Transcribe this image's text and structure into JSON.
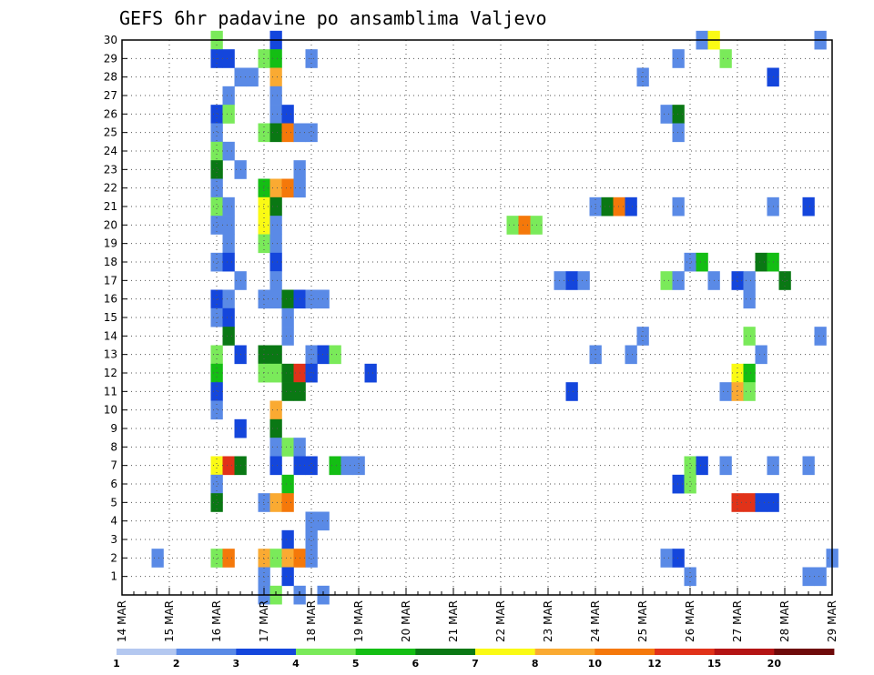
{
  "chart_data": {
    "type": "heatmap",
    "title": "GEFS 6hr padavine po ansamblima Valjevo",
    "xlabel": "",
    "ylabel": "",
    "x_tick_labels": [
      "14 MAR",
      "15 MAR",
      "16 MAR",
      "17 MAR",
      "18 MAR",
      "19 MAR",
      "20 MAR",
      "21 MAR",
      "22 MAR",
      "23 MAR",
      "24 MAR",
      "25 MAR",
      "26 MAR",
      "27 MAR",
      "28 MAR",
      "29 MAR"
    ],
    "x_range": [
      "14 MAR",
      "29 MAR"
    ],
    "time_step_hours": 6,
    "y_tick_labels": [
      "1",
      "2",
      "3",
      "4",
      "5",
      "6",
      "7",
      "8",
      "9",
      "10",
      "11",
      "12",
      "13",
      "14",
      "15",
      "16",
      "17",
      "18",
      "19",
      "20",
      "21",
      "22",
      "23",
      "24",
      "25",
      "26",
      "27",
      "28",
      "29",
      "30"
    ],
    "y_range": [
      0,
      30
    ],
    "grid": true,
    "legend": {
      "placement": "bottom",
      "bounds": [
        1,
        2,
        3,
        4,
        5,
        6,
        7,
        8,
        10,
        12,
        15,
        20
      ],
      "bound_labels": [
        "1",
        "2",
        "3",
        "4",
        "5",
        "6",
        "7",
        "8",
        "10",
        "12",
        "15",
        "20"
      ],
      "colors": [
        "#b4c8f0",
        "#5a8ae6",
        "#1446dc",
        "#7aea5a",
        "#14be14",
        "#0a7814",
        "#fafa14",
        "#faaa32",
        "#f5780a",
        "#e13219",
        "#b41414",
        "#6e0a0a"
      ]
    },
    "cells": [
      [
        "16 MAR 00Z",
        30,
        3
      ],
      [
        "17 MAR 06Z",
        30,
        2
      ],
      [
        "26 MAR 06Z",
        30,
        1
      ],
      [
        "26 MAR 12Z",
        30,
        6
      ],
      [
        "28 MAR 18Z",
        30,
        1
      ],
      [
        "16 MAR 00Z",
        29,
        2
      ],
      [
        "16 MAR 06Z",
        29,
        2
      ],
      [
        "17 MAR 00Z",
        29,
        3
      ],
      [
        "17 MAR 06Z",
        29,
        4
      ],
      [
        "18 MAR 00Z",
        29,
        1
      ],
      [
        "25 MAR 18Z",
        29,
        1
      ],
      [
        "26 MAR 18Z",
        29,
        3
      ],
      [
        "16 MAR 12Z",
        28,
        1
      ],
      [
        "16 MAR 18Z",
        28,
        1
      ],
      [
        "17 MAR 06Z",
        28,
        7
      ],
      [
        "25 MAR 00Z",
        28,
        1
      ],
      [
        "27 MAR 18Z",
        28,
        2
      ],
      [
        "16 MAR 06Z",
        27,
        1
      ],
      [
        "17 MAR 06Z",
        27,
        1
      ],
      [
        "16 MAR 00Z",
        26,
        2
      ],
      [
        "16 MAR 06Z",
        26,
        3
      ],
      [
        "17 MAR 06Z",
        26,
        1
      ],
      [
        "17 MAR 12Z",
        26,
        2
      ],
      [
        "25 MAR 12Z",
        26,
        1
      ],
      [
        "25 MAR 18Z",
        26,
        5
      ],
      [
        "16 MAR 00Z",
        25,
        1
      ],
      [
        "17 MAR 00Z",
        25,
        3
      ],
      [
        "17 MAR 06Z",
        25,
        5
      ],
      [
        "17 MAR 12Z",
        25,
        8
      ],
      [
        "17 MAR 18Z",
        25,
        1
      ],
      [
        "18 MAR 00Z",
        25,
        1
      ],
      [
        "25 MAR 18Z",
        25,
        1
      ],
      [
        "16 MAR 00Z",
        24,
        3
      ],
      [
        "16 MAR 06Z",
        24,
        1
      ],
      [
        "16 MAR 00Z",
        23,
        5
      ],
      [
        "16 MAR 12Z",
        23,
        1
      ],
      [
        "17 MAR 18Z",
        23,
        1
      ],
      [
        "16 MAR 00Z",
        22,
        1
      ],
      [
        "17 MAR 00Z",
        22,
        4
      ],
      [
        "17 MAR 06Z",
        22,
        7
      ],
      [
        "17 MAR 12Z",
        22,
        8
      ],
      [
        "17 MAR 18Z",
        22,
        1
      ],
      [
        "16 MAR 00Z",
        21,
        3
      ],
      [
        "16 MAR 06Z",
        21,
        1
      ],
      [
        "17 MAR 00Z",
        21,
        6
      ],
      [
        "17 MAR 06Z",
        21,
        5
      ],
      [
        "24 MAR 00Z",
        21,
        1
      ],
      [
        "24 MAR 06Z",
        21,
        5
      ],
      [
        "24 MAR 12Z",
        21,
        8
      ],
      [
        "24 MAR 18Z",
        21,
        2
      ],
      [
        "25 MAR 18Z",
        21,
        1
      ],
      [
        "27 MAR 18Z",
        21,
        1
      ],
      [
        "28 MAR 12Z",
        21,
        2
      ],
      [
        "16 MAR 00Z",
        20,
        1
      ],
      [
        "16 MAR 06Z",
        20,
        1
      ],
      [
        "17 MAR 00Z",
        20,
        6
      ],
      [
        "17 MAR 06Z",
        20,
        1
      ],
      [
        "22 MAR 06Z",
        20,
        3
      ],
      [
        "22 MAR 12Z",
        20,
        8
      ],
      [
        "22 MAR 18Z",
        20,
        3
      ],
      [
        "16 MAR 06Z",
        19,
        1
      ],
      [
        "17 MAR 00Z",
        19,
        3
      ],
      [
        "17 MAR 06Z",
        19,
        1
      ],
      [
        "16 MAR 00Z",
        18,
        1
      ],
      [
        "16 MAR 06Z",
        18,
        2
      ],
      [
        "17 MAR 06Z",
        18,
        2
      ],
      [
        "26 MAR 00Z",
        18,
        1
      ],
      [
        "26 MAR 06Z",
        18,
        4
      ],
      [
        "27 MAR 12Z",
        18,
        5
      ],
      [
        "27 MAR 18Z",
        18,
        4
      ],
      [
        "16 MAR 12Z",
        17,
        1
      ],
      [
        "17 MAR 06Z",
        17,
        1
      ],
      [
        "23 MAR 06Z",
        17,
        1
      ],
      [
        "23 MAR 12Z",
        17,
        2
      ],
      [
        "23 MAR 18Z",
        17,
        1
      ],
      [
        "25 MAR 12Z",
        17,
        3
      ],
      [
        "25 MAR 18Z",
        17,
        1
      ],
      [
        "26 MAR 12Z",
        17,
        1
      ],
      [
        "27 MAR 00Z",
        17,
        2
      ],
      [
        "27 MAR 06Z",
        17,
        1
      ],
      [
        "28 MAR 00Z",
        17,
        5
      ],
      [
        "16 MAR 00Z",
        16,
        2
      ],
      [
        "16 MAR 06Z",
        16,
        1
      ],
      [
        "17 MAR 00Z",
        16,
        1
      ],
      [
        "17 MAR 06Z",
        16,
        1
      ],
      [
        "17 MAR 12Z",
        16,
        5
      ],
      [
        "17 MAR 18Z",
        16,
        2
      ],
      [
        "18 MAR 00Z",
        16,
        1
      ],
      [
        "18 MAR 06Z",
        16,
        1
      ],
      [
        "27 MAR 06Z",
        16,
        1
      ],
      [
        "16 MAR 00Z",
        15,
        1
      ],
      [
        "16 MAR 06Z",
        15,
        2
      ],
      [
        "17 MAR 12Z",
        15,
        1
      ],
      [
        "16 MAR 06Z",
        14,
        5
      ],
      [
        "17 MAR 12Z",
        14,
        1
      ],
      [
        "25 MAR 00Z",
        14,
        1
      ],
      [
        "27 MAR 06Z",
        14,
        3
      ],
      [
        "28 MAR 18Z",
        14,
        1
      ],
      [
        "16 MAR 00Z",
        13,
        3
      ],
      [
        "16 MAR 12Z",
        13,
        2
      ],
      [
        "17 MAR 00Z",
        13,
        5
      ],
      [
        "17 MAR 06Z",
        13,
        5
      ],
      [
        "18 MAR 00Z",
        13,
        1
      ],
      [
        "18 MAR 06Z",
        13,
        2
      ],
      [
        "18 MAR 12Z",
        13,
        3
      ],
      [
        "24 MAR 00Z",
        13,
        1
      ],
      [
        "24 MAR 18Z",
        13,
        1
      ],
      [
        "27 MAR 12Z",
        13,
        1
      ],
      [
        "16 MAR 00Z",
        12,
        4
      ],
      [
        "17 MAR 00Z",
        12,
        3
      ],
      [
        "17 MAR 06Z",
        12,
        3
      ],
      [
        "17 MAR 12Z",
        12,
        5
      ],
      [
        "17 MAR 18Z",
        12,
        9
      ],
      [
        "18 MAR 00Z",
        12,
        2
      ],
      [
        "19 MAR 06Z",
        12,
        2
      ],
      [
        "27 MAR 00Z",
        12,
        6
      ],
      [
        "27 MAR 06Z",
        12,
        4
      ],
      [
        "16 MAR 00Z",
        11,
        2
      ],
      [
        "17 MAR 12Z",
        11,
        5
      ],
      [
        "17 MAR 18Z",
        11,
        5
      ],
      [
        "23 MAR 12Z",
        11,
        2
      ],
      [
        "26 MAR 18Z",
        11,
        1
      ],
      [
        "27 MAR 00Z",
        11,
        7
      ],
      [
        "27 MAR 06Z",
        11,
        3
      ],
      [
        "16 MAR 00Z",
        10,
        1
      ],
      [
        "17 MAR 06Z",
        10,
        7
      ],
      [
        "16 MAR 12Z",
        9,
        2
      ],
      [
        "17 MAR 06Z",
        9,
        5
      ],
      [
        "17 MAR 06Z",
        8,
        1
      ],
      [
        "17 MAR 12Z",
        8,
        3
      ],
      [
        "17 MAR 18Z",
        8,
        1
      ],
      [
        "16 MAR 00Z",
        7,
        6
      ],
      [
        "16 MAR 06Z",
        7,
        9
      ],
      [
        "16 MAR 12Z",
        7,
        5
      ],
      [
        "17 MAR 06Z",
        7,
        2
      ],
      [
        "17 MAR 18Z",
        7,
        2
      ],
      [
        "18 MAR 00Z",
        7,
        2
      ],
      [
        "18 MAR 12Z",
        7,
        4
      ],
      [
        "18 MAR 18Z",
        7,
        1
      ],
      [
        "19 MAR 00Z",
        7,
        1
      ],
      [
        "26 MAR 00Z",
        7,
        3
      ],
      [
        "26 MAR 06Z",
        7,
        2
      ],
      [
        "26 MAR 18Z",
        7,
        1
      ],
      [
        "27 MAR 18Z",
        7,
        1
      ],
      [
        "28 MAR 12Z",
        7,
        1
      ],
      [
        "16 MAR 00Z",
        6,
        1
      ],
      [
        "17 MAR 12Z",
        6,
        4
      ],
      [
        "25 MAR 18Z",
        6,
        2
      ],
      [
        "26 MAR 00Z",
        6,
        3
      ],
      [
        "16 MAR 00Z",
        5,
        5
      ],
      [
        "17 MAR 00Z",
        5,
        1
      ],
      [
        "17 MAR 06Z",
        5,
        7
      ],
      [
        "17 MAR 12Z",
        5,
        8
      ],
      [
        "27 MAR 00Z",
        5,
        9
      ],
      [
        "27 MAR 06Z",
        5,
        9
      ],
      [
        "27 MAR 12Z",
        5,
        2
      ],
      [
        "27 MAR 18Z",
        5,
        2
      ],
      [
        "18 MAR 00Z",
        4,
        1
      ],
      [
        "18 MAR 06Z",
        4,
        1
      ],
      [
        "17 MAR 12Z",
        3,
        2
      ],
      [
        "18 MAR 00Z",
        3,
        1
      ],
      [
        "14 MAR 18Z",
        2,
        1
      ],
      [
        "16 MAR 00Z",
        2,
        3
      ],
      [
        "16 MAR 06Z",
        2,
        8
      ],
      [
        "17 MAR 00Z",
        2,
        7
      ],
      [
        "17 MAR 06Z",
        2,
        3
      ],
      [
        "17 MAR 12Z",
        2,
        7
      ],
      [
        "17 MAR 18Z",
        2,
        8
      ],
      [
        "18 MAR 00Z",
        2,
        1
      ],
      [
        "25 MAR 12Z",
        2,
        1
      ],
      [
        "25 MAR 18Z",
        2,
        2
      ],
      [
        "29 MAR 00Z",
        2,
        1
      ],
      [
        "17 MAR 00Z",
        1,
        1
      ],
      [
        "17 MAR 12Z",
        1,
        2
      ],
      [
        "26 MAR 00Z",
        1,
        1
      ],
      [
        "28 MAR 12Z",
        1,
        1
      ],
      [
        "28 MAR 18Z",
        1,
        1
      ],
      [
        "17 MAR 00Z",
        0,
        1
      ],
      [
        "17 MAR 06Z",
        0,
        3
      ],
      [
        "17 MAR 18Z",
        0,
        1
      ],
      [
        "18 MAR 06Z",
        0,
        1
      ]
    ]
  }
}
